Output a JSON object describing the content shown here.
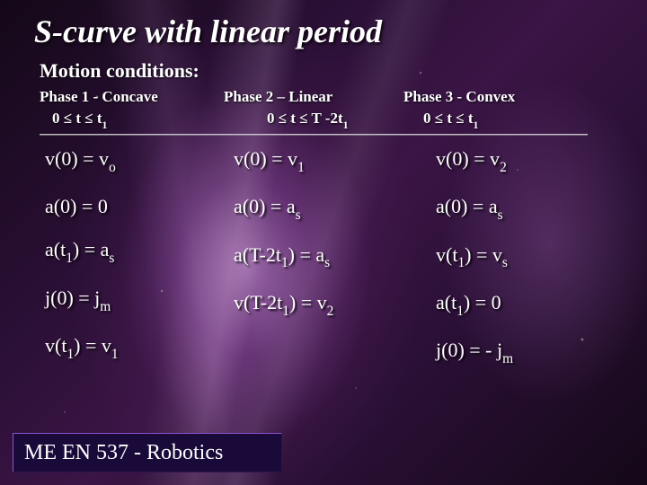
{
  "title": "S-curve with linear period",
  "subtitle": "Motion conditions:",
  "colors": {
    "text": "#ffffff",
    "footer_bg": "#1a0a3a",
    "footer_border_light": "#8855cc",
    "footer_border_dark": "#2a1550",
    "bg_base": "#1a0a1f"
  },
  "phases": {
    "p1": {
      "head": "Phase 1 - Concave",
      "range_pre": "0 ≤ t ≤ t",
      "range_sub": "1"
    },
    "p2": {
      "head": "Phase 2 – Linear",
      "range_pre": "0 ≤ t ≤ T -2t",
      "range_sub": "1"
    },
    "p3": {
      "head": "Phase 3 - Convex",
      "range_pre": "0 ≤ t ≤ t",
      "range_sub": "1"
    }
  },
  "eq": {
    "c1": {
      "r1": {
        "a": "v(0) = v",
        "s": "o"
      },
      "r2": {
        "a": "a(0) = 0",
        "s": ""
      },
      "r3": {
        "a": "a(t",
        "s1": "1",
        "b": ") = a",
        "s2": "s"
      },
      "r4": {
        "a": "j(0) = j",
        "s": "m"
      },
      "r5": {
        "a": "v(t",
        "s1": "1",
        "b": ") = v",
        "s2": "1"
      }
    },
    "c2": {
      "r1": {
        "a": "v(0) = v",
        "s": "1"
      },
      "r2": {
        "a": "a(0) = a",
        "s": "s"
      },
      "r3": {
        "a": "a(T-2t",
        "s1": "1",
        "b": ") = a",
        "s2": "s"
      },
      "r4": {
        "a": "v(T-2t",
        "s1": "1",
        "b": ") = v",
        "s2": "2"
      }
    },
    "c3": {
      "r1": {
        "a": "v(0) = v",
        "s": "2"
      },
      "r2": {
        "a": "a(0) = a",
        "s": "s"
      },
      "r3": {
        "a": "v(t",
        "s1": "1",
        "b": ") = v",
        "s2": "s"
      },
      "r4": {
        "a": "a(t",
        "s1": "1",
        "b": ") = 0",
        "s2": ""
      },
      "r5": {
        "a": "j(0) = - j",
        "s": "m"
      }
    }
  },
  "footer": "ME EN 537 - Robotics"
}
